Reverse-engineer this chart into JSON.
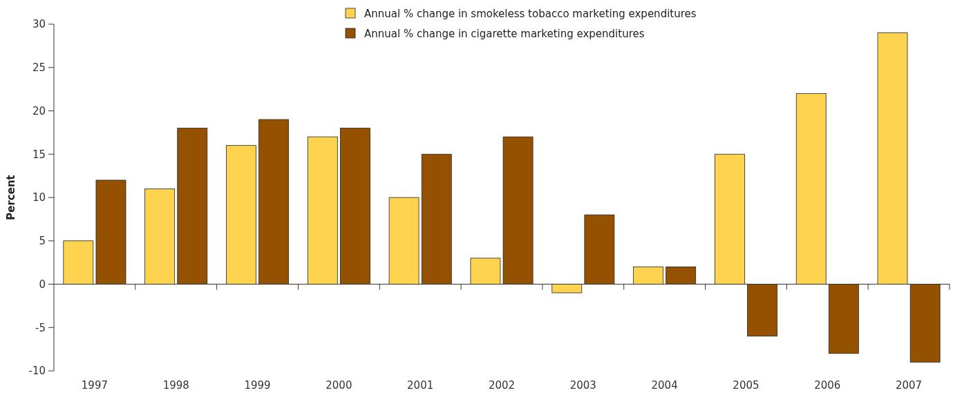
{
  "chart_data": {
    "type": "bar",
    "ylabel": "Percent",
    "categories": [
      "1997",
      "1998",
      "1999",
      "2000",
      "2001",
      "2002",
      "2003",
      "2004",
      "2005",
      "2006",
      "2007"
    ],
    "series": [
      {
        "name": "Annual % change in smokeless tobacco marketing expenditures",
        "color": "#fdd34f",
        "values": [
          5,
          11,
          16,
          17,
          10,
          3,
          -1,
          2,
          15,
          22,
          29
        ]
      },
      {
        "name": "Annual % change in cigarette marketing expenditures",
        "color": "#945200",
        "values": [
          12,
          18,
          19,
          18,
          15,
          17,
          8,
          2,
          -6,
          -8,
          -9
        ]
      }
    ],
    "ylim": [
      -10,
      30
    ],
    "yticks": [
      -10,
      -5,
      0,
      5,
      10,
      15,
      20,
      25,
      30
    ],
    "legend": "top"
  }
}
